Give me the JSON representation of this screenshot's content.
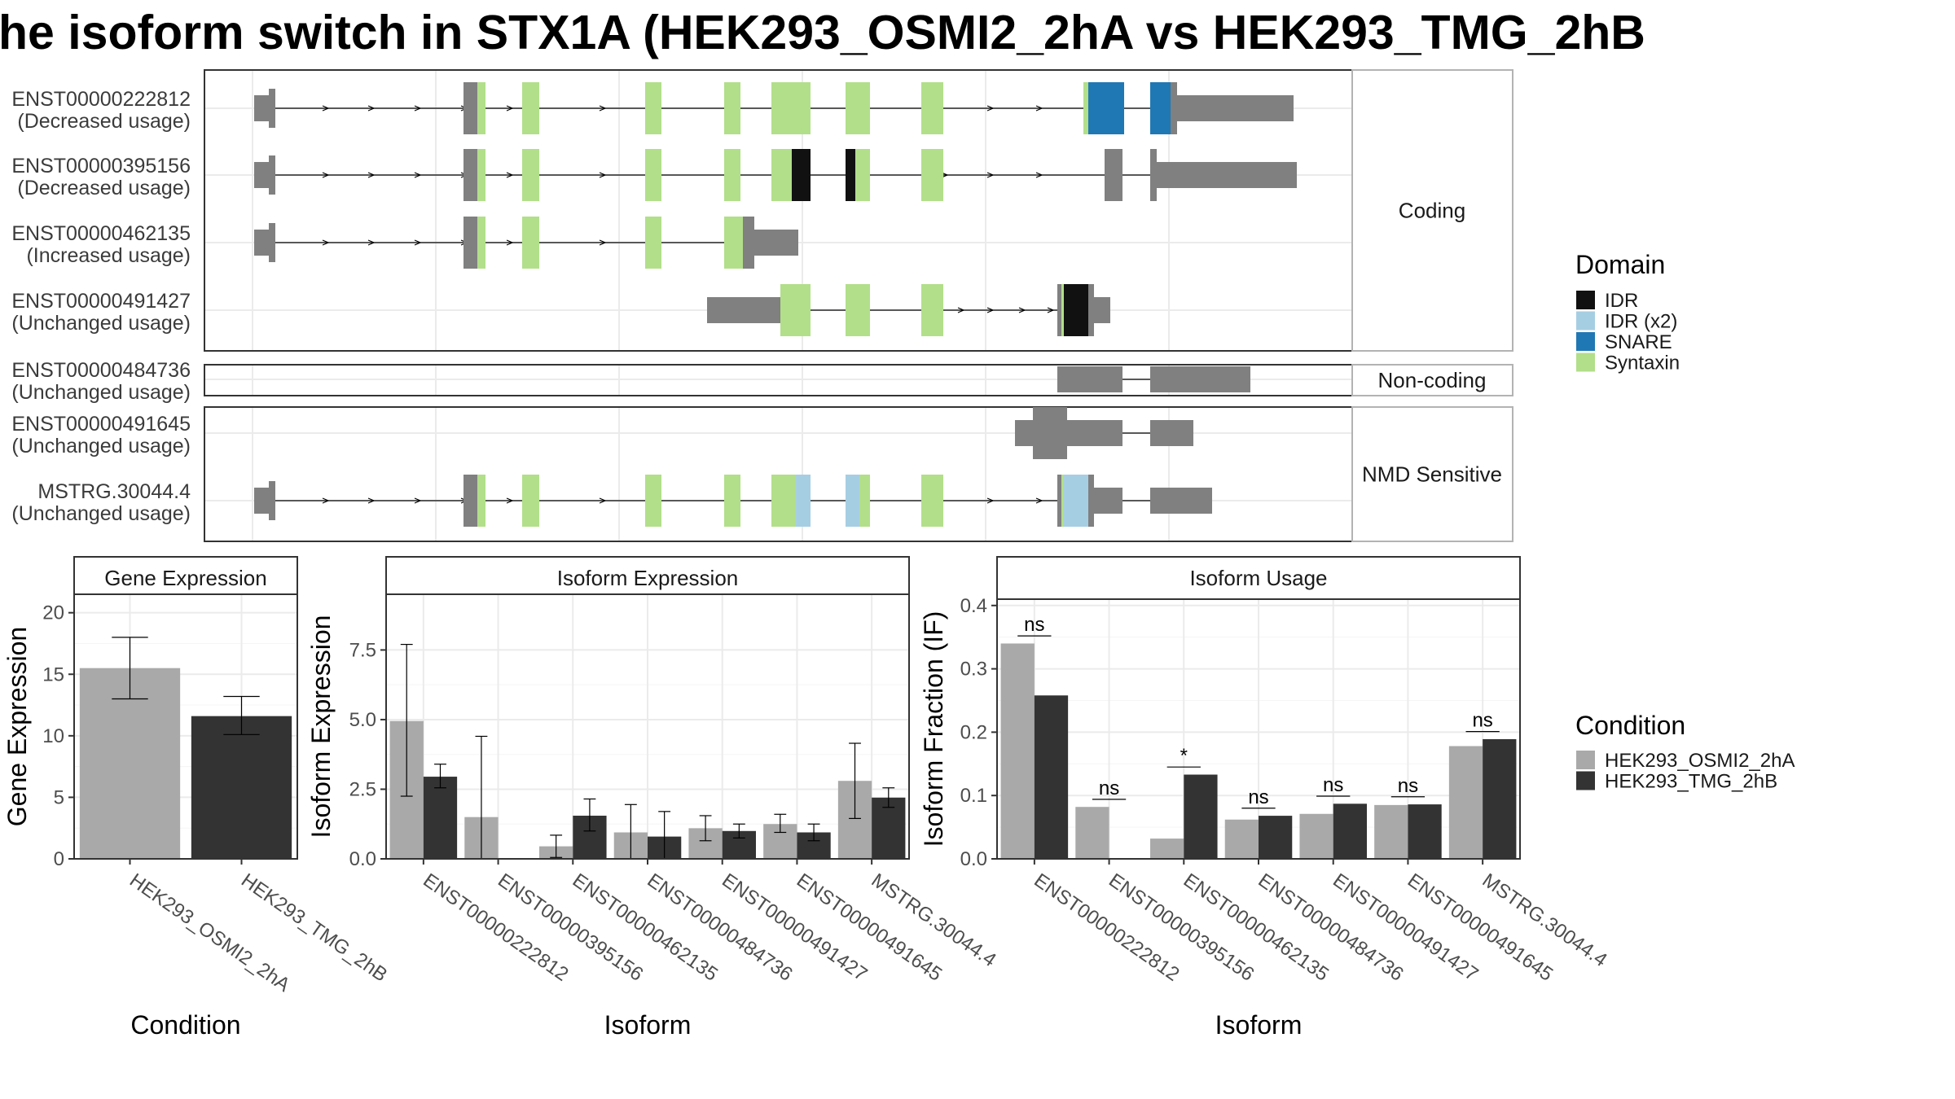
{
  "title": "he isoform switch in STX1A (HEK293_OSMI2_2hA vs HEK293_TMG_2hB",
  "chart_data": [
    {
      "type": "gene-structure",
      "facets": [
        "Coding",
        "Non-coding",
        "NMD Sensitive"
      ],
      "transcripts": [
        {
          "id": "ENST00000222812",
          "usage": "(Decreased usage)",
          "facet": "Coding"
        },
        {
          "id": "ENST00000395156",
          "usage": "(Decreased usage)",
          "facet": "Coding"
        },
        {
          "id": "ENST00000462135",
          "usage": "(Increased usage)",
          "facet": "Coding"
        },
        {
          "id": "ENST00000491427",
          "usage": "(Unchanged usage)",
          "facet": "Coding"
        },
        {
          "id": "ENST00000484736",
          "usage": "(Unchanged usage)",
          "facet": "Non-coding"
        },
        {
          "id": "ENST00000491645",
          "usage": "(Unchanged usage)",
          "facet": "NMD Sensitive"
        },
        {
          "id": "MSTRG.30044.4",
          "usage": "(Unchanged usage)",
          "facet": "NMD Sensitive"
        }
      ],
      "legend": {
        "title": "Domain",
        "items": [
          {
            "label": "IDR",
            "color": "#111111"
          },
          {
            "label": "IDR (x2)",
            "color": "#a6cee3"
          },
          {
            "label": "SNARE",
            "color": "#1f78b4"
          },
          {
            "label": "Syntaxin",
            "color": "#b2df8a"
          }
        ]
      },
      "colors": {
        "exon": "#808080",
        "intron": "#000000"
      }
    },
    {
      "type": "bar",
      "panel": "Gene Expression",
      "categories": [
        "HEK293_OSMI2_2hA",
        "HEK293_TMG_2hB"
      ],
      "values": [
        15.5,
        11.6
      ],
      "err_low": [
        13.0,
        10.1
      ],
      "err_high": [
        18.0,
        13.2
      ],
      "colors": [
        "#a9a9a9",
        "#333333"
      ],
      "xlabel": "Condition",
      "ylabel": "Gene Expression",
      "ylim": [
        0,
        21.5
      ],
      "yticks": [
        0,
        5,
        10,
        15,
        20
      ]
    },
    {
      "type": "bar",
      "panel": "Isoform Expression",
      "categories": [
        "ENST00000222812",
        "ENST00000395156",
        "ENST00000462135",
        "ENST00000484736",
        "ENST00000491427",
        "ENST00000491645",
        "MSTRG.30044.4"
      ],
      "series": [
        {
          "name": "HEK293_OSMI2_2hA",
          "color": "#a9a9a9",
          "values": [
            4.95,
            1.5,
            0.45,
            0.95,
            1.1,
            1.25,
            2.8
          ],
          "err_low": [
            2.25,
            0,
            0.05,
            0,
            0.65,
            0.95,
            1.45
          ],
          "err_high": [
            7.7,
            4.4,
            0.85,
            1.95,
            1.55,
            1.6,
            4.15
          ]
        },
        {
          "name": "HEK293_TMG_2hB",
          "color": "#333333",
          "values": [
            2.95,
            0.0,
            1.55,
            0.8,
            1.0,
            0.95,
            2.2
          ],
          "err_low": [
            2.55,
            0,
            1.0,
            0,
            0.75,
            0.65,
            1.85
          ],
          "err_high": [
            3.4,
            0,
            2.15,
            1.7,
            1.25,
            1.25,
            2.55
          ]
        }
      ],
      "xlabel": "Isoform",
      "ylabel": "Isoform Expression",
      "ylim": [
        0,
        9.5
      ],
      "yticks": [
        0.0,
        2.5,
        5.0,
        7.5
      ],
      "ytick_labels": [
        "0.0",
        "2.5",
        "5.0",
        "7.5"
      ]
    },
    {
      "type": "bar",
      "panel": "Isoform Usage",
      "categories": [
        "ENST00000222812",
        "ENST00000395156",
        "ENST00000462135",
        "ENST00000484736",
        "ENST00000491427",
        "ENST00000491645",
        "MSTRG.30044.4"
      ],
      "series": [
        {
          "name": "HEK293_OSMI2_2hA",
          "color": "#a9a9a9",
          "values": [
            0.34,
            0.082,
            0.032,
            0.062,
            0.071,
            0.085,
            0.178
          ]
        },
        {
          "name": "HEK293_TMG_2hB",
          "color": "#333333",
          "values": [
            0.258,
            0.0,
            0.133,
            0.068,
            0.087,
            0.086,
            0.189
          ]
        }
      ],
      "significance": [
        "ns",
        "ns",
        "*",
        "ns",
        "ns",
        "ns",
        "ns"
      ],
      "xlabel": "Isoform",
      "ylabel": "Isoform Fraction (IF)",
      "ylim": [
        0,
        0.41
      ],
      "yticks": [
        0.0,
        0.1,
        0.2,
        0.3,
        0.4
      ],
      "ytick_labels": [
        "0.0",
        "0.1",
        "0.2",
        "0.3",
        "0.4"
      ]
    }
  ],
  "condition_legend": {
    "title": "Condition",
    "items": [
      {
        "label": "HEK293_OSMI2_2hA",
        "color": "#a9a9a9"
      },
      {
        "label": "HEK293_TMG_2hB",
        "color": "#333333"
      }
    ]
  }
}
